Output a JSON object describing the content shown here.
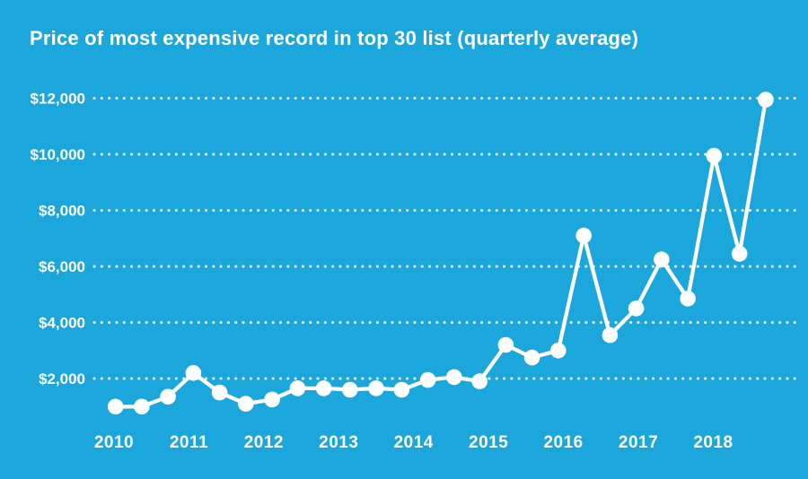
{
  "chart": {
    "title": "Price of most expensive record in top 30 list (quarterly average)"
  },
  "colors": {
    "background": "#1BA7DC",
    "text": "#FFFFFF",
    "line": "#FFFFFF",
    "points": "#FFFFFF",
    "gridline": "#FFFFFF"
  },
  "chart_data": {
    "type": "line",
    "title": "Price of most expensive record in top 30 list (quarterly average)",
    "xlabel": "",
    "ylabel": "",
    "x_tick_labels": [
      "2010",
      "2011",
      "2012",
      "2013",
      "2014",
      "2015",
      "2016",
      "2017",
      "2018"
    ],
    "x_tick_values": [
      2010,
      2011,
      2012,
      2013,
      2014,
      2015,
      2016,
      2017,
      2018
    ],
    "y_tick_labels": [
      "$2,000",
      "$4,000",
      "$6,000",
      "$8,000",
      "$10,000",
      "$12,000"
    ],
    "y_tick_values": [
      2000,
      4000,
      6000,
      8000,
      10000,
      12000
    ],
    "xlim": [
      2009.75,
      2019.15
    ],
    "ylim": [
      500,
      12600
    ],
    "grid": "horizontal-dotted",
    "legend": "none",
    "marker": "filled-circle",
    "x": [
      2010.02,
      2010.37,
      2010.72,
      2011.06,
      2011.41,
      2011.76,
      2012.11,
      2012.45,
      2012.8,
      2013.15,
      2013.5,
      2013.84,
      2014.19,
      2014.54,
      2014.88,
      2015.23,
      2015.58,
      2015.93,
      2016.27,
      2016.62,
      2016.97,
      2017.31,
      2017.66,
      2018.01,
      2018.35,
      2018.7
    ],
    "values": [
      1000,
      1000,
      1350,
      2200,
      1500,
      1100,
      1250,
      1650,
      1650,
      1600,
      1650,
      1600,
      1950,
      2050,
      1900,
      3200,
      2750,
      3000,
      7100,
      3550,
      4500,
      6250,
      4850,
      9950,
      6450,
      11950
    ]
  }
}
